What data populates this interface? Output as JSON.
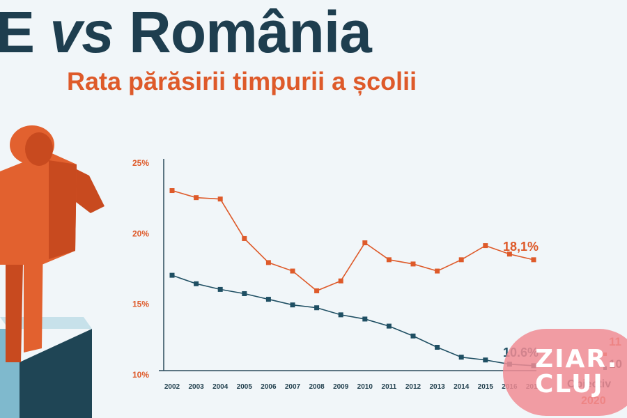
{
  "header": {
    "title_left": "E",
    "title_vs": "vs",
    "title_right": "România",
    "subtitle": "Rata părăsirii timpurii a școlii"
  },
  "colors": {
    "background": "#f1f6f9",
    "title": "#1e3e4f",
    "orange": "#de5a2a",
    "navy": "#1f4f63",
    "badge": "#f18c94"
  },
  "chart_data": {
    "type": "line",
    "title": "",
    "xlabel": "",
    "ylabel": "",
    "categories": [
      "2002",
      "2003",
      "2004",
      "2005",
      "2006",
      "2007",
      "2008",
      "2009",
      "2010",
      "2011",
      "2012",
      "2013",
      "2014",
      "2015",
      "2016",
      "2017"
    ],
    "ylim": [
      10,
      25
    ],
    "yticks": [
      25,
      20,
      15,
      10
    ],
    "ytick_labels": [
      "25%",
      "20%",
      "15%",
      "10%"
    ],
    "grid": false,
    "series": [
      {
        "key": "romania",
        "color": "#de5a2a",
        "values": [
          23.0,
          22.5,
          22.4,
          19.6,
          17.9,
          17.3,
          15.9,
          16.6,
          19.3,
          18.1,
          17.8,
          17.3,
          18.1,
          19.1,
          18.5,
          18.1
        ],
        "end_label": "18,1%"
      },
      {
        "key": "ue",
        "color": "#1f4f63",
        "values": [
          17.0,
          16.4,
          16.0,
          15.7,
          15.3,
          14.9,
          14.7,
          14.2,
          13.9,
          13.4,
          12.7,
          11.9,
          11.2,
          11.0,
          10.7,
          10.6
        ],
        "end_label": "10.6%"
      }
    ],
    "objective": {
      "label_1": "Objectiv",
      "label_2": "2020",
      "value_ro_partial": "11",
      "value_ue_partial": "10"
    }
  },
  "watermark": {
    "line_1": "ZIAR.",
    "line_2": "CLUJ"
  }
}
